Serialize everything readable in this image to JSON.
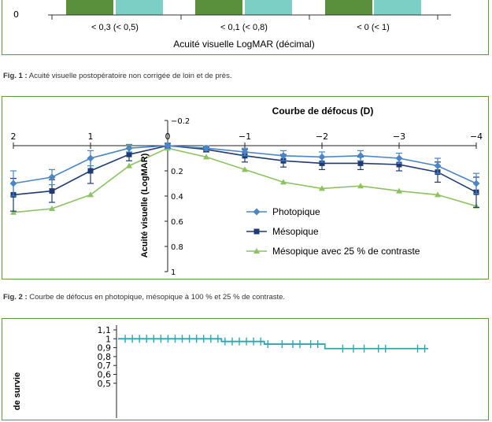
{
  "figure1": {
    "y_tick": "0",
    "categories": [
      "< 0,3 (< 0,5)",
      "< 0,1 (< 0,8)",
      "< 0 (< 1)"
    ],
    "xlabel": "Acuité visuelle LogMAR (décimal)",
    "colors": {
      "bar_a": "#5a8f3c",
      "bar_b": "#7ccfc5",
      "frame": "#5d9a34"
    },
    "caption_label": "Fig. 1 :",
    "caption_text": "Acuité visuelle postopératoire non corrigée de loin et de près."
  },
  "figure2": {
    "caption_label": "Fig. 2 :",
    "caption_text": "Courbe de défocus en photopique, mésopique à 100 % et 25 % de contraste."
  },
  "chart_data": {
    "type": "line",
    "title": "Courbe de défocus (D)",
    "ylabel": "Acuité visuelle (LogMAR)",
    "x_tick_labels": [
      "2",
      "1",
      "0",
      "−1",
      "−2",
      "−3",
      "−4"
    ],
    "y_tick_labels": [
      "−0.2",
      "0",
      "0.2",
      "0.4",
      "0.6",
      "0.8",
      "1"
    ],
    "x": [
      2,
      1.5,
      1,
      0.5,
      0,
      -0.5,
      -1,
      -1.5,
      -2,
      -2.5,
      -3,
      -3.5,
      -4
    ],
    "xlim": [
      2,
      -4
    ],
    "ylim": [
      -0.2,
      1
    ],
    "series": [
      {
        "name": "Photopique",
        "color": "#4a86c5",
        "marker": "diamond",
        "values": [
          0.3,
          0.25,
          0.1,
          0.02,
          0.0,
          0.02,
          0.05,
          0.08,
          0.09,
          0.08,
          0.1,
          0.16,
          0.3
        ],
        "err": [
          0.1,
          0.06,
          0.06,
          0.03,
          0.02,
          0.02,
          0.03,
          0.04,
          0.04,
          0.04,
          0.04,
          0.06,
          0.08
        ]
      },
      {
        "name": "Mésopique",
        "color": "#1f3b73",
        "marker": "square",
        "values": [
          0.39,
          0.36,
          0.2,
          0.07,
          0.0,
          0.03,
          0.08,
          0.12,
          0.14,
          0.14,
          0.15,
          0.21,
          0.37
        ],
        "err": [
          0.13,
          0.09,
          0.1,
          0.05,
          0.02,
          0.02,
          0.05,
          0.05,
          0.05,
          0.05,
          0.05,
          0.08,
          0.12
        ]
      },
      {
        "name": "Mésopique avec 25 % de contraste",
        "color": "#8cc262",
        "marker": "triangle",
        "values": [
          0.53,
          0.5,
          0.39,
          0.16,
          0.02,
          0.09,
          0.19,
          0.29,
          0.34,
          0.32,
          0.36,
          0.39,
          0.48
        ],
        "err": []
      }
    ]
  },
  "figure3": {
    "y_tick_labels": [
      "1,1",
      "1",
      "0,9",
      "0,8",
      "0,7",
      "0,6",
      "0,5"
    ],
    "ylabel_partial": "de survie",
    "curve_color": "#2aa8b0",
    "steps": [
      {
        "from": 0,
        "to": 0.29,
        "y": 1.0
      },
      {
        "from": 0.29,
        "to": 0.41,
        "y": 0.97
      },
      {
        "from": 0.41,
        "to": 0.58,
        "y": 0.94
      },
      {
        "from": 0.58,
        "to": 0.87,
        "y": 0.89
      }
    ],
    "censor_ticks": [
      0.02,
      0.04,
      0.06,
      0.08,
      0.1,
      0.12,
      0.14,
      0.16,
      0.18,
      0.2,
      0.22,
      0.24,
      0.26,
      0.28,
      0.3,
      0.32,
      0.34,
      0.36,
      0.38,
      0.4,
      0.42,
      0.46,
      0.49,
      0.51,
      0.54,
      0.56,
      0.63,
      0.66,
      0.69,
      0.73,
      0.75,
      0.84,
      0.86
    ]
  }
}
